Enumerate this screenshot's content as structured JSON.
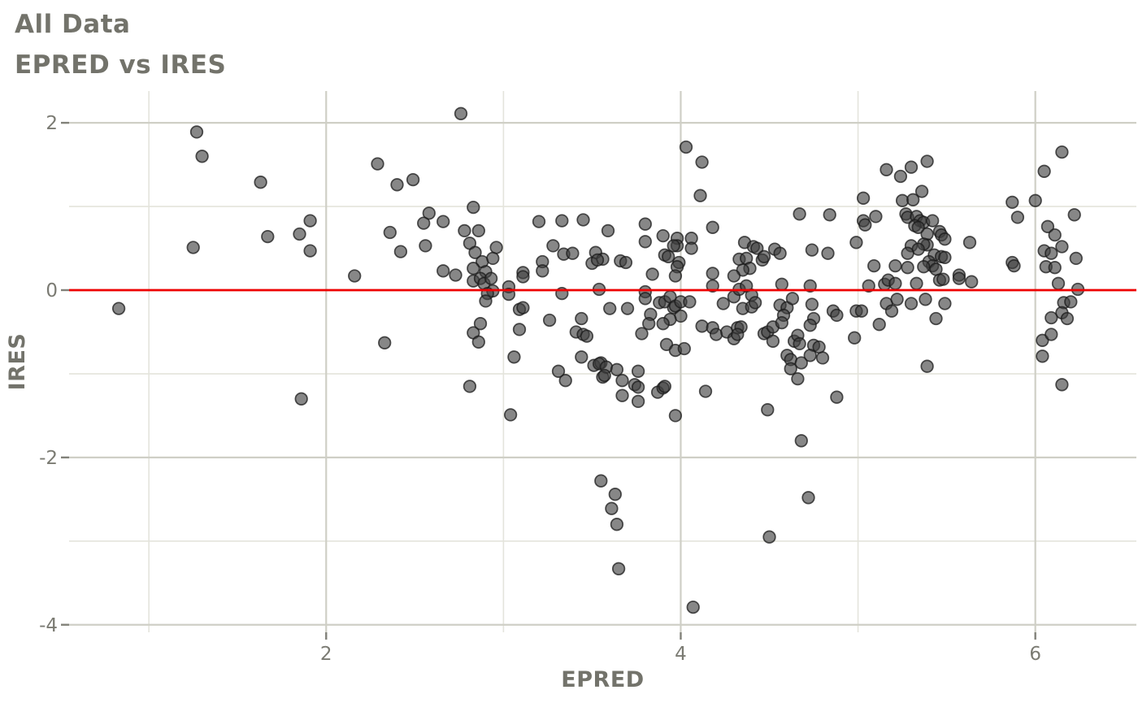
{
  "header": {
    "title": "All Data",
    "subtitle": "EPRED vs IRES"
  },
  "chart_data": {
    "type": "scatter",
    "title": "All Data",
    "subtitle": "EPRED vs IRES",
    "xlabel": "EPRED",
    "ylabel": "IRES",
    "xlim": [
      0.55,
      6.57
    ],
    "ylim": [
      -4.09,
      2.38
    ],
    "x_major_ticks": [
      2,
      4,
      6
    ],
    "x_minor_ticks": [
      1,
      3,
      5
    ],
    "y_major_ticks": [
      2,
      0,
      -2,
      -4
    ],
    "y_minor_ticks": [
      1,
      -1,
      -3
    ],
    "grid": "on",
    "legend": "none",
    "reference_line": {
      "y": 0,
      "color": "#ee0000"
    },
    "colors": {
      "background": "#ffffff",
      "grid_major": "#cfcfc6",
      "grid_minor": "#e4e4dc",
      "tick_mark": "#82827a",
      "tick_label": "#7b7b73",
      "axis_title": "#73736b",
      "title_text": "#73736b",
      "point_fill": "#3e3e3e",
      "point_stroke": "#191919",
      "reference_line": "#ee0000"
    },
    "points": [
      [
        1.27,
        1.89
      ],
      [
        1.3,
        1.6
      ],
      [
        1.63,
        1.29
      ],
      [
        1.91,
        0.83
      ],
      [
        1.67,
        0.64
      ],
      [
        1.85,
        0.67
      ],
      [
        1.25,
        0.51
      ],
      [
        1.91,
        0.47
      ],
      [
        0.83,
        -0.22
      ],
      [
        1.86,
        -1.3
      ],
      [
        2.76,
        2.11
      ],
      [
        2.29,
        1.51
      ],
      [
        2.4,
        1.26
      ],
      [
        2.49,
        1.32
      ],
      [
        2.83,
        0.99
      ],
      [
        2.58,
        0.92
      ],
      [
        2.55,
        0.8
      ],
      [
        2.66,
        0.82
      ],
      [
        2.36,
        0.69
      ],
      [
        2.78,
        0.71
      ],
      [
        2.86,
        0.71
      ],
      [
        2.42,
        0.46
      ],
      [
        2.56,
        0.53
      ],
      [
        2.81,
        0.56
      ],
      [
        2.84,
        0.45
      ],
      [
        2.88,
        0.34
      ],
      [
        2.94,
        0.38
      ],
      [
        2.96,
        0.51
      ],
      [
        2.66,
        0.23
      ],
      [
        2.73,
        0.18
      ],
      [
        2.83,
        0.26
      ],
      [
        2.9,
        0.22
      ],
      [
        2.16,
        0.17
      ],
      [
        3.2,
        0.82
      ],
      [
        3.33,
        0.83
      ],
      [
        3.45,
        0.84
      ],
      [
        3.28,
        0.53
      ],
      [
        3.34,
        0.43
      ],
      [
        3.39,
        0.44
      ],
      [
        3.52,
        0.45
      ],
      [
        3.5,
        0.32
      ],
      [
        3.22,
        0.34
      ],
      [
        3.22,
        0.23
      ],
      [
        3.11,
        0.21
      ],
      [
        2.83,
        0.11
      ],
      [
        2.87,
        0.14
      ],
      [
        2.89,
        0.08
      ],
      [
        2.93,
        0.14
      ],
      [
        2.94,
        -0.01
      ],
      [
        2.91,
        -0.04
      ],
      [
        2.9,
        -0.13
      ],
      [
        3.11,
        0.16
      ],
      [
        3.03,
        0.04
      ],
      [
        3.03,
        -0.05
      ],
      [
        3.33,
        -0.04
      ],
      [
        3.54,
        0.01
      ],
      [
        3.09,
        -0.23
      ],
      [
        3.11,
        -0.21
      ],
      [
        3.26,
        -0.36
      ],
      [
        3.44,
        -0.34
      ],
      [
        3.41,
        -0.5
      ],
      [
        3.45,
        -0.53
      ],
      [
        3.47,
        -0.55
      ],
      [
        3.09,
        -0.47
      ],
      [
        2.87,
        -0.4
      ],
      [
        2.83,
        -0.51
      ],
      [
        2.86,
        -0.62
      ],
      [
        2.33,
        -0.63
      ],
      [
        3.06,
        -0.8
      ],
      [
        3.44,
        -0.8
      ],
      [
        3.51,
        -0.9
      ],
      [
        3.55,
        -0.87
      ],
      [
        3.31,
        -0.97
      ],
      [
        3.35,
        -1.08
      ],
      [
        3.56,
        -1.04
      ],
      [
        2.81,
        -1.15
      ],
      [
        3.04,
        -1.49
      ],
      [
        4.03,
        1.71
      ],
      [
        4.12,
        1.53
      ],
      [
        4.11,
        1.13
      ],
      [
        4.67,
        0.91
      ],
      [
        4.84,
        0.9
      ],
      [
        3.59,
        0.71
      ],
      [
        3.8,
        0.79
      ],
      [
        3.8,
        0.58
      ],
      [
        3.9,
        0.65
      ],
      [
        3.98,
        0.62
      ],
      [
        3.98,
        0.53
      ],
      [
        4.06,
        0.62
      ],
      [
        4.06,
        0.5
      ],
      [
        3.96,
        0.53
      ],
      [
        4.18,
        0.75
      ],
      [
        3.91,
        0.42
      ],
      [
        3.93,
        0.4
      ],
      [
        3.99,
        0.33
      ],
      [
        3.98,
        0.28
      ],
      [
        4.36,
        0.57
      ],
      [
        4.41,
        0.52
      ],
      [
        4.43,
        0.5
      ],
      [
        4.53,
        0.49
      ],
      [
        4.56,
        0.44
      ],
      [
        4.33,
        0.37
      ],
      [
        4.37,
        0.38
      ],
      [
        4.46,
        0.36
      ],
      [
        4.47,
        0.4
      ],
      [
        4.39,
        0.26
      ],
      [
        4.35,
        0.24
      ],
      [
        4.74,
        0.48
      ],
      [
        4.83,
        0.44
      ],
      [
        4.99,
        0.57
      ],
      [
        3.56,
        0.37
      ],
      [
        3.53,
        0.36
      ],
      [
        3.66,
        0.35
      ],
      [
        3.69,
        0.33
      ],
      [
        3.84,
        0.19
      ],
      [
        4.18,
        0.2
      ],
      [
        4.3,
        0.17
      ],
      [
        3.97,
        0.17
      ],
      [
        3.8,
        -0.02
      ],
      [
        3.8,
        -0.1
      ],
      [
        3.88,
        -0.15
      ],
      [
        3.91,
        -0.14
      ],
      [
        3.94,
        -0.08
      ],
      [
        3.96,
        -0.21
      ],
      [
        3.97,
        -0.19
      ],
      [
        4.0,
        -0.14
      ],
      [
        4.05,
        -0.14
      ],
      [
        4.0,
        -0.31
      ],
      [
        3.94,
        -0.35
      ],
      [
        3.9,
        -0.4
      ],
      [
        3.83,
        -0.29
      ],
      [
        3.82,
        -0.4
      ],
      [
        3.78,
        -0.52
      ],
      [
        3.6,
        -0.22
      ],
      [
        3.7,
        -0.22
      ],
      [
        3.92,
        -0.65
      ],
      [
        3.97,
        -0.72
      ],
      [
        4.02,
        -0.7
      ],
      [
        4.12,
        -0.43
      ],
      [
        4.18,
        -0.45
      ],
      [
        4.18,
        0.05
      ],
      [
        4.24,
        -0.16
      ],
      [
        4.2,
        -0.53
      ],
      [
        4.26,
        -0.5
      ],
      [
        4.3,
        -0.58
      ],
      [
        4.32,
        -0.45
      ],
      [
        4.34,
        -0.44
      ],
      [
        4.32,
        -0.53
      ],
      [
        4.3,
        -0.08
      ],
      [
        4.33,
        0.01
      ],
      [
        4.37,
        0.05
      ],
      [
        4.35,
        -0.22
      ],
      [
        4.4,
        -0.2
      ],
      [
        4.4,
        -0.06
      ],
      [
        4.42,
        -0.15
      ],
      [
        4.47,
        -0.52
      ],
      [
        4.49,
        -0.5
      ],
      [
        4.52,
        -0.44
      ],
      [
        4.52,
        -0.61
      ],
      [
        4.57,
        0.07
      ],
      [
        4.56,
        -0.18
      ],
      [
        4.6,
        -0.21
      ],
      [
        4.58,
        -0.3
      ],
      [
        4.57,
        -0.39
      ],
      [
        4.6,
        -0.78
      ],
      [
        4.62,
        -0.83
      ],
      [
        4.62,
        -0.94
      ],
      [
        4.63,
        -0.1
      ],
      [
        4.64,
        -0.61
      ],
      [
        4.66,
        -0.54
      ],
      [
        4.67,
        -0.64
      ],
      [
        4.68,
        -0.87
      ],
      [
        4.66,
        -1.06
      ],
      [
        4.73,
        0.05
      ],
      [
        4.74,
        -0.17
      ],
      [
        4.75,
        -0.34
      ],
      [
        4.73,
        -0.42
      ],
      [
        4.75,
        -0.66
      ],
      [
        4.78,
        -0.68
      ],
      [
        4.73,
        -0.78
      ],
      [
        4.8,
        -0.81
      ],
      [
        4.86,
        -0.25
      ],
      [
        4.88,
        -0.3
      ],
      [
        4.88,
        -1.28
      ],
      [
        4.99,
        -0.25
      ],
      [
        4.98,
        -0.57
      ],
      [
        4.14,
        -1.21
      ],
      [
        4.49,
        -1.43
      ],
      [
        3.97,
        -1.5
      ],
      [
        4.68,
        -1.8
      ],
      [
        3.54,
        -0.88
      ],
      [
        3.58,
        -0.92
      ],
      [
        3.57,
        -1.02
      ],
      [
        3.64,
        -0.95
      ],
      [
        3.67,
        -1.08
      ],
      [
        3.76,
        -0.97
      ],
      [
        3.74,
        -1.13
      ],
      [
        3.76,
        -1.16
      ],
      [
        3.67,
        -1.26
      ],
      [
        3.76,
        -1.33
      ],
      [
        3.87,
        -1.22
      ],
      [
        3.9,
        -1.17
      ],
      [
        3.91,
        -1.15
      ],
      [
        6.15,
        1.65
      ],
      [
        5.39,
        1.54
      ],
      [
        5.16,
        1.44
      ],
      [
        5.3,
        1.47
      ],
      [
        5.24,
        1.36
      ],
      [
        6.05,
        1.42
      ],
      [
        5.36,
        1.18
      ],
      [
        5.03,
        1.1
      ],
      [
        5.25,
        1.07
      ],
      [
        5.31,
        1.08
      ],
      [
        5.87,
        1.05
      ],
      [
        6.0,
        1.07
      ],
      [
        5.1,
        0.88
      ],
      [
        5.03,
        0.83
      ],
      [
        5.04,
        0.78
      ],
      [
        5.27,
        0.91
      ],
      [
        5.28,
        0.87
      ],
      [
        5.33,
        0.88
      ],
      [
        5.35,
        0.83
      ],
      [
        5.37,
        0.81
      ],
      [
        5.32,
        0.77
      ],
      [
        5.34,
        0.75
      ],
      [
        5.42,
        0.83
      ],
      [
        5.9,
        0.87
      ],
      [
        6.22,
        0.9
      ],
      [
        5.39,
        0.67
      ],
      [
        5.46,
        0.7
      ],
      [
        5.47,
        0.66
      ],
      [
        5.49,
        0.61
      ],
      [
        5.39,
        0.54
      ],
      [
        5.37,
        0.55
      ],
      [
        5.3,
        0.53
      ],
      [
        5.34,
        0.49
      ],
      [
        5.28,
        0.44
      ],
      [
        5.63,
        0.57
      ],
      [
        6.07,
        0.76
      ],
      [
        6.11,
        0.66
      ],
      [
        6.15,
        0.52
      ],
      [
        6.05,
        0.47
      ],
      [
        6.09,
        0.44
      ],
      [
        6.23,
        0.38
      ],
      [
        5.43,
        0.42
      ],
      [
        5.47,
        0.4
      ],
      [
        5.49,
        0.39
      ],
      [
        5.4,
        0.34
      ],
      [
        5.42,
        0.29
      ],
      [
        5.37,
        0.28
      ],
      [
        5.44,
        0.25
      ],
      [
        5.28,
        0.27
      ],
      [
        5.09,
        0.29
      ],
      [
        5.21,
        0.29
      ],
      [
        5.87,
        0.33
      ],
      [
        5.88,
        0.29
      ],
      [
        6.06,
        0.28
      ],
      [
        6.11,
        0.27
      ],
      [
        5.57,
        0.18
      ],
      [
        5.06,
        0.05
      ],
      [
        5.15,
        0.07
      ],
      [
        5.17,
        0.12
      ],
      [
        5.21,
        0.08
      ],
      [
        5.33,
        0.08
      ],
      [
        5.46,
        0.12
      ],
      [
        5.48,
        0.13
      ],
      [
        5.57,
        0.14
      ],
      [
        5.64,
        0.1
      ],
      [
        6.13,
        0.08
      ],
      [
        6.24,
        0.01
      ],
      [
        5.16,
        -0.16
      ],
      [
        5.22,
        -0.11
      ],
      [
        5.19,
        -0.25
      ],
      [
        5.3,
        -0.16
      ],
      [
        5.38,
        -0.11
      ],
      [
        5.49,
        -0.16
      ],
      [
        5.44,
        -0.34
      ],
      [
        5.12,
        -0.41
      ],
      [
        5.02,
        -0.25
      ],
      [
        6.16,
        -0.15
      ],
      [
        6.2,
        -0.14
      ],
      [
        6.15,
        -0.27
      ],
      [
        6.09,
        -0.33
      ],
      [
        6.18,
        -0.34
      ],
      [
        6.04,
        -0.6
      ],
      [
        6.09,
        -0.53
      ],
      [
        6.04,
        -0.79
      ],
      [
        5.39,
        -0.91
      ],
      [
        6.15,
        -1.13
      ],
      [
        3.55,
        -2.28
      ],
      [
        3.63,
        -2.44
      ],
      [
        3.61,
        -2.61
      ],
      [
        3.64,
        -2.8
      ],
      [
        3.65,
        -3.33
      ],
      [
        4.07,
        -3.79
      ],
      [
        4.5,
        -2.95
      ],
      [
        4.72,
        -2.48
      ]
    ]
  }
}
